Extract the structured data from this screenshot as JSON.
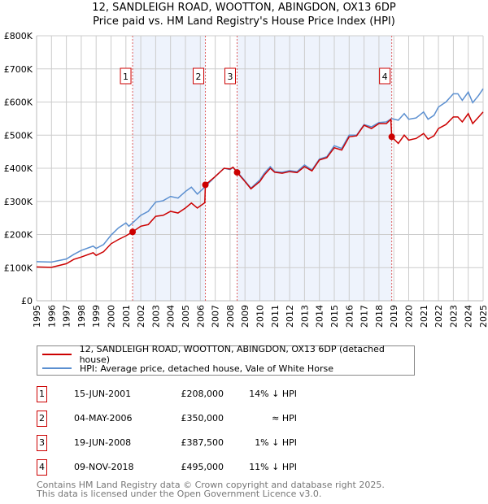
{
  "title": "12, SANDLEIGH ROAD, WOOTTON, ABINGDON, OX13 6DP",
  "subtitle": "Price paid vs. HM Land Registry's House Price Index (HPI)",
  "chart_data": {
    "type": "line",
    "xlim": [
      1995,
      2025
    ],
    "ylim": [
      0,
      800
    ],
    "y_ticks": [
      {
        "v": 0,
        "label": "£0"
      },
      {
        "v": 100,
        "label": "£100K"
      },
      {
        "v": 200,
        "label": "£200K"
      },
      {
        "v": 300,
        "label": "£300K"
      },
      {
        "v": 400,
        "label": "£400K"
      },
      {
        "v": 500,
        "label": "£500K"
      },
      {
        "v": 600,
        "label": "£600K"
      },
      {
        "v": 700,
        "label": "£700K"
      },
      {
        "v": 800,
        "label": "£800K"
      }
    ],
    "x_ticks": [
      "1995",
      "1996",
      "1997",
      "1998",
      "1999",
      "2000",
      "2001",
      "2002",
      "2003",
      "2004",
      "2005",
      "2006",
      "2007",
      "2008",
      "2009",
      "2010",
      "2011",
      "2012",
      "2013",
      "2014",
      "2015",
      "2016",
      "2017",
      "2018",
      "2019",
      "2020",
      "2021",
      "2022",
      "2023",
      "2024",
      "2025"
    ],
    "shaded_ranges": [
      [
        2001.45,
        2006.34
      ],
      [
        2008.47,
        2018.86
      ]
    ],
    "series": [
      {
        "name": "12, SANDLEIGH ROAD, WOOTTON, ABINGDON, OX13 6DP (detached house)",
        "color": "#cc0000",
        "points": [
          [
            1995,
            102
          ],
          [
            1996,
            101
          ],
          [
            1997,
            112
          ],
          [
            1997.5,
            125
          ],
          [
            1998,
            132
          ],
          [
            1998.8,
            145
          ],
          [
            1999,
            137
          ],
          [
            1999.5,
            148
          ],
          [
            2000,
            172
          ],
          [
            2000.5,
            185
          ],
          [
            2001,
            196
          ],
          [
            2001.45,
            208
          ],
          [
            2002,
            225
          ],
          [
            2002.5,
            230
          ],
          [
            2003,
            255
          ],
          [
            2003.5,
            258
          ],
          [
            2004,
            270
          ],
          [
            2004.5,
            265
          ],
          [
            2005,
            280
          ],
          [
            2005.4,
            295
          ],
          [
            2005.8,
            280
          ],
          [
            2006.3,
            296
          ],
          [
            2006.34,
            350
          ],
          [
            2007,
            375
          ],
          [
            2007.6,
            400
          ],
          [
            2008,
            398
          ],
          [
            2008.2,
            403
          ],
          [
            2008.47,
            387.5
          ],
          [
            2009,
            360
          ],
          [
            2009.4,
            338
          ],
          [
            2010,
            360
          ],
          [
            2010.3,
            380
          ],
          [
            2010.7,
            400
          ],
          [
            2011,
            388
          ],
          [
            2011.5,
            385
          ],
          [
            2012,
            390
          ],
          [
            2012.5,
            387
          ],
          [
            2013,
            405
          ],
          [
            2013.5,
            392
          ],
          [
            2014,
            425
          ],
          [
            2014.5,
            432
          ],
          [
            2015,
            462
          ],
          [
            2015.5,
            455
          ],
          [
            2016,
            495
          ],
          [
            2016.5,
            498
          ],
          [
            2017,
            530
          ],
          [
            2017.5,
            520
          ],
          [
            2018,
            535
          ],
          [
            2018.5,
            535
          ],
          [
            2018.8,
            548
          ],
          [
            2018.86,
            495
          ],
          [
            2019.3,
            475
          ],
          [
            2019.7,
            500
          ],
          [
            2020,
            485
          ],
          [
            2020.5,
            490
          ],
          [
            2021,
            505
          ],
          [
            2021.3,
            488
          ],
          [
            2021.7,
            498
          ],
          [
            2022,
            520
          ],
          [
            2022.5,
            532
          ],
          [
            2023,
            555
          ],
          [
            2023.3,
            555
          ],
          [
            2023.6,
            540
          ],
          [
            2024,
            565
          ],
          [
            2024.3,
            535
          ],
          [
            2024.7,
            555
          ],
          [
            2025,
            570
          ]
        ]
      },
      {
        "name": "HPI: Average price, detached house, Vale of White Horse",
        "color": "#5b8fd0",
        "points": [
          [
            1995,
            118
          ],
          [
            1996,
            117
          ],
          [
            1997,
            126
          ],
          [
            1997.5,
            140
          ],
          [
            1998,
            152
          ],
          [
            1998.8,
            165
          ],
          [
            1999,
            158
          ],
          [
            1999.5,
            170
          ],
          [
            2000,
            198
          ],
          [
            2000.5,
            220
          ],
          [
            2001,
            235
          ],
          [
            2001.2,
            225
          ],
          [
            2001.45,
            235
          ],
          [
            2002,
            258
          ],
          [
            2002.5,
            270
          ],
          [
            2003,
            298
          ],
          [
            2003.5,
            302
          ],
          [
            2004,
            315
          ],
          [
            2004.5,
            310
          ],
          [
            2005,
            330
          ],
          [
            2005.4,
            343
          ],
          [
            2005.8,
            322
          ],
          [
            2006.34,
            345
          ],
          [
            2007,
            375
          ],
          [
            2007.6,
            400
          ],
          [
            2008,
            396
          ],
          [
            2008.2,
            402
          ],
          [
            2008.47,
            390
          ],
          [
            2009,
            362
          ],
          [
            2009.4,
            340
          ],
          [
            2010,
            365
          ],
          [
            2010.3,
            385
          ],
          [
            2010.7,
            405
          ],
          [
            2011,
            390
          ],
          [
            2011.5,
            388
          ],
          [
            2012,
            393
          ],
          [
            2012.5,
            390
          ],
          [
            2013,
            410
          ],
          [
            2013.5,
            395
          ],
          [
            2014,
            428
          ],
          [
            2014.5,
            435
          ],
          [
            2015,
            468
          ],
          [
            2015.5,
            460
          ],
          [
            2016,
            500
          ],
          [
            2016.5,
            500
          ],
          [
            2017,
            532
          ],
          [
            2017.5,
            525
          ],
          [
            2018,
            538
          ],
          [
            2018.5,
            540
          ],
          [
            2018.86,
            550
          ],
          [
            2019.3,
            545
          ],
          [
            2019.7,
            565
          ],
          [
            2020,
            548
          ],
          [
            2020.5,
            552
          ],
          [
            2021,
            570
          ],
          [
            2021.3,
            548
          ],
          [
            2021.7,
            560
          ],
          [
            2022,
            585
          ],
          [
            2022.5,
            600
          ],
          [
            2023,
            625
          ],
          [
            2023.3,
            625
          ],
          [
            2023.6,
            605
          ],
          [
            2024,
            630
          ],
          [
            2024.3,
            598
          ],
          [
            2024.7,
            620
          ],
          [
            2025,
            640
          ]
        ]
      }
    ],
    "sales": [
      {
        "n": "1",
        "x": 2001.45,
        "y": 208,
        "date": "15-JUN-2001",
        "price": "£208,000",
        "hpi": "14% ↓ HPI"
      },
      {
        "n": "2",
        "x": 2006.34,
        "y": 350,
        "date": "04-MAY-2006",
        "price": "£350,000",
        "hpi": "≈ HPI"
      },
      {
        "n": "3",
        "x": 2008.47,
        "y": 387.5,
        "date": "19-JUN-2008",
        "price": "£387,500",
        "hpi": "1% ↓ HPI"
      },
      {
        "n": "4",
        "x": 2018.86,
        "y": 495,
        "date": "09-NOV-2018",
        "price": "£495,000",
        "hpi": "11% ↓ HPI"
      }
    ],
    "legend_position": "below"
  },
  "footer": {
    "line1": "Contains HM Land Registry data © Crown copyright and database right 2025.",
    "line2": "This data is licensed under the Open Government Licence v3.0."
  }
}
